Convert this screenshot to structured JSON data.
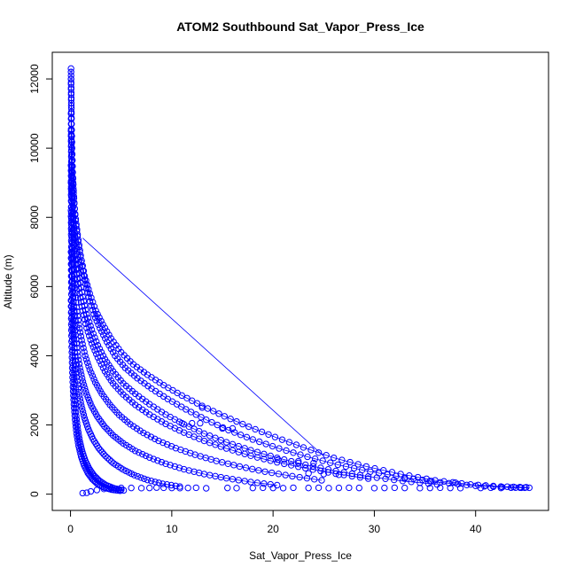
{
  "chart_data": {
    "type": "scatter",
    "title": "ATOM2 Southbound Sat_Vapor_Press_Ice",
    "xlabel": "Sat_Vapor_Press_Ice",
    "ylabel": "Altitude (m)",
    "xlim": [
      -1.8,
      47.2
    ],
    "ylim": [
      -470,
      12770
    ],
    "x_ticks": [
      0,
      10,
      20,
      30,
      40
    ],
    "y_ticks": [
      0,
      2000,
      4000,
      6000,
      8000,
      10000,
      12000
    ],
    "grid": false,
    "legend": "none",
    "point_style": "open-circle",
    "connected": true,
    "color": "#0000ff",
    "series": [
      {
        "x": [
          0.05,
          0.06,
          0.08,
          0.1,
          0.14,
          0.2,
          0.3,
          0.45,
          0.7,
          1.0,
          1.4,
          1.9,
          2.5,
          3.2,
          4.0,
          5.0,
          6.2,
          7.6,
          9.2,
          11.0,
          13.0,
          15.2,
          17.6,
          20.2,
          23.0,
          26.0,
          29.2,
          32.6,
          36.0,
          39.5,
          42.5,
          45.0
        ],
        "y": [
          12300,
          11900,
          11300,
          10700,
          10000,
          9300,
          8700,
          8100,
          7500,
          6900,
          6300,
          5800,
          5300,
          4900,
          4500,
          4100,
          3750,
          3450,
          3150,
          2850,
          2550,
          2250,
          1950,
          1650,
          1350,
          1050,
          800,
          580,
          400,
          280,
          220,
          200
        ]
      },
      {
        "x": [
          0.05,
          0.07,
          0.1,
          0.15,
          0.22,
          0.33,
          0.5,
          0.75,
          1.05,
          1.4,
          1.8,
          2.3,
          2.9,
          3.6,
          4.4,
          5.4,
          6.6,
          8.0,
          9.6,
          11.4,
          13.4,
          15.6,
          18.0,
          20.6,
          23.4,
          26.4,
          29.6,
          33.0,
          36.5,
          40.0,
          43.5,
          45.3
        ],
        "y": [
          12000,
          11400,
          10700,
          10000,
          9300,
          8600,
          7900,
          7300,
          6700,
          6200,
          5700,
          5200,
          4800,
          4400,
          4000,
          3650,
          3350,
          3050,
          2750,
          2450,
          2150,
          1850,
          1580,
          1320,
          1080,
          850,
          650,
          480,
          340,
          240,
          190,
          185
        ]
      },
      {
        "x": [
          0.05,
          0.07,
          0.1,
          0.14,
          0.2,
          0.3,
          0.45,
          0.65,
          0.9,
          1.2,
          1.6,
          2.1,
          2.7,
          3.4,
          4.2,
          5.2,
          6.4,
          7.8,
          9.4,
          11.2,
          13.2,
          15.4,
          17.8,
          20.4,
          23.2,
          26.2,
          29.4,
          32.8,
          36.2
        ],
        "y": [
          11000,
          10400,
          9800,
          9200,
          8600,
          8000,
          7400,
          6800,
          6250,
          5700,
          5200,
          4750,
          4300,
          3900,
          3550,
          3200,
          2900,
          2600,
          2300,
          2020,
          1750,
          1500,
          1270,
          1050,
          850,
          670,
          510,
          380,
          280
        ]
      },
      {
        "x": [
          0.05,
          0.07,
          0.1,
          0.14,
          0.2,
          0.3,
          0.45,
          0.65,
          0.9,
          1.2,
          1.6,
          2.1,
          2.7,
          3.4,
          4.2,
          5.2,
          6.4,
          7.8,
          9.4,
          11.2,
          13.2,
          15.4,
          17.8,
          20.4,
          23.2,
          26.2,
          29.4
        ],
        "y": [
          10500,
          9900,
          9300,
          8700,
          8100,
          7500,
          6900,
          6350,
          5800,
          5300,
          4800,
          4350,
          3950,
          3550,
          3200,
          2880,
          2580,
          2300,
          2030,
          1780,
          1540,
          1320,
          1110,
          920,
          750,
          590,
          450
        ]
      },
      {
        "x": [
          0.05,
          0.07,
          0.1,
          0.14,
          0.2,
          0.3,
          0.43,
          0.6,
          0.82,
          1.1,
          1.45,
          1.9,
          2.45,
          3.1,
          3.9,
          4.8,
          5.9,
          7.2,
          8.7,
          10.4,
          12.3,
          14.4,
          16.7,
          19.2,
          21.9,
          24.8
        ],
        "y": [
          9500,
          8900,
          8300,
          7700,
          7100,
          6500,
          5950,
          5400,
          4900,
          4450,
          4000,
          3600,
          3230,
          2900,
          2580,
          2290,
          2020,
          1770,
          1540,
          1330,
          1140,
          960,
          800,
          650,
          520,
          400
        ]
      },
      {
        "x": [
          0.05,
          0.07,
          0.1,
          0.14,
          0.19,
          0.26,
          0.36,
          0.5,
          0.68,
          0.92,
          1.22,
          1.6,
          2.07,
          2.65,
          3.35,
          4.2,
          5.2,
          6.4,
          7.8,
          9.4,
          11.2,
          13.2,
          15.4,
          17.8,
          20.4
        ],
        "y": [
          9000,
          8300,
          7600,
          6950,
          6300,
          5700,
          5150,
          4600,
          4100,
          3650,
          3250,
          2880,
          2550,
          2240,
          1960,
          1700,
          1470,
          1250,
          1060,
          880,
          720,
          580,
          460,
          350,
          260
        ]
      },
      {
        "x": [
          0.05,
          0.07,
          0.1,
          0.14,
          0.19,
          0.26,
          0.35,
          0.47,
          0.62,
          0.82,
          1.07,
          1.38,
          1.76,
          2.22,
          2.78,
          3.45,
          4.25,
          5.2,
          6.3,
          7.6,
          9.1,
          10.8
        ],
        "y": [
          8200,
          7500,
          6800,
          6150,
          5500,
          4900,
          4350,
          3850,
          3380,
          2950,
          2560,
          2200,
          1880,
          1590,
          1330,
          1100,
          890,
          710,
          550,
          410,
          300,
          220
        ]
      },
      {
        "x": [
          0.05,
          0.07,
          0.1,
          0.14,
          0.19,
          0.25,
          0.33,
          0.43,
          0.56,
          0.72,
          0.92,
          1.17,
          1.47,
          1.84,
          2.29,
          2.84,
          3.5,
          4.3,
          5.25
        ],
        "y": [
          7000,
          6300,
          5600,
          4950,
          4300,
          3720,
          3180,
          2700,
          2260,
          1870,
          1520,
          1220,
          960,
          740,
          550,
          390,
          260,
          170,
          110
        ]
      },
      {
        "x": [
          0.05,
          0.08,
          0.12,
          0.17,
          0.24,
          0.33,
          0.45,
          0.6,
          0.8,
          1.05,
          1.35,
          1.72,
          2.17,
          2.7,
          3.32,
          4.05,
          4.9
        ],
        "y": [
          5600,
          4900,
          4250,
          3650,
          3100,
          2600,
          2150,
          1750,
          1400,
          1090,
          830,
          610,
          430,
          290,
          190,
          130,
          100
        ]
      }
    ],
    "outlier_segment": {
      "x": [
        1.2,
        25.0
      ],
      "y": [
        7400,
        1100
      ]
    },
    "surface_points": {
      "x": [
        1.2,
        1.6,
        2.0,
        2.6,
        3.3,
        4.0,
        5.0,
        6.0,
        7.0,
        7.8,
        8.5,
        9.2,
        10.0,
        10.8,
        11.6,
        12.4,
        13.4,
        15.5,
        16.4,
        18.0,
        19.0,
        20.0,
        21.0,
        22.0,
        23.5,
        24.5,
        25.5,
        26.5,
        27.5,
        28.5,
        30.0,
        31.0,
        32.0,
        33.0,
        34.5,
        35.5,
        36.5,
        37.5,
        38.5,
        40.5,
        41.5,
        42.5,
        43.5,
        44.5
      ],
      "y": [
        30,
        40,
        80,
        120,
        150,
        170,
        180,
        180,
        175,
        180,
        190,
        185,
        180,
        175,
        180,
        185,
        170,
        180,
        175,
        180,
        185,
        180,
        175,
        185,
        180,
        185,
        175,
        180,
        185,
        180,
        175,
        180,
        185,
        180,
        175,
        180,
        185,
        180,
        175,
        180,
        185,
        180,
        190,
        185
      ]
    },
    "clusters": [
      {
        "x": [
          13.0,
          15.0,
          16.0
        ],
        "y": [
          2500,
          1900,
          1900
        ]
      },
      {
        "x": [
          11.0,
          12.0,
          12.8
        ],
        "y": [
          2050,
          2050,
          2050
        ]
      },
      {
        "x": [
          20.5,
          22.5,
          24.0
        ],
        "y": [
          1000,
          950,
          900
        ]
      },
      {
        "x": [
          23.5,
          25.0,
          26.5
        ],
        "y": [
          600,
          580,
          560
        ]
      },
      {
        "x": [
          33.0,
          35.5,
          38.0
        ],
        "y": [
          450,
          380,
          330
        ]
      }
    ]
  }
}
